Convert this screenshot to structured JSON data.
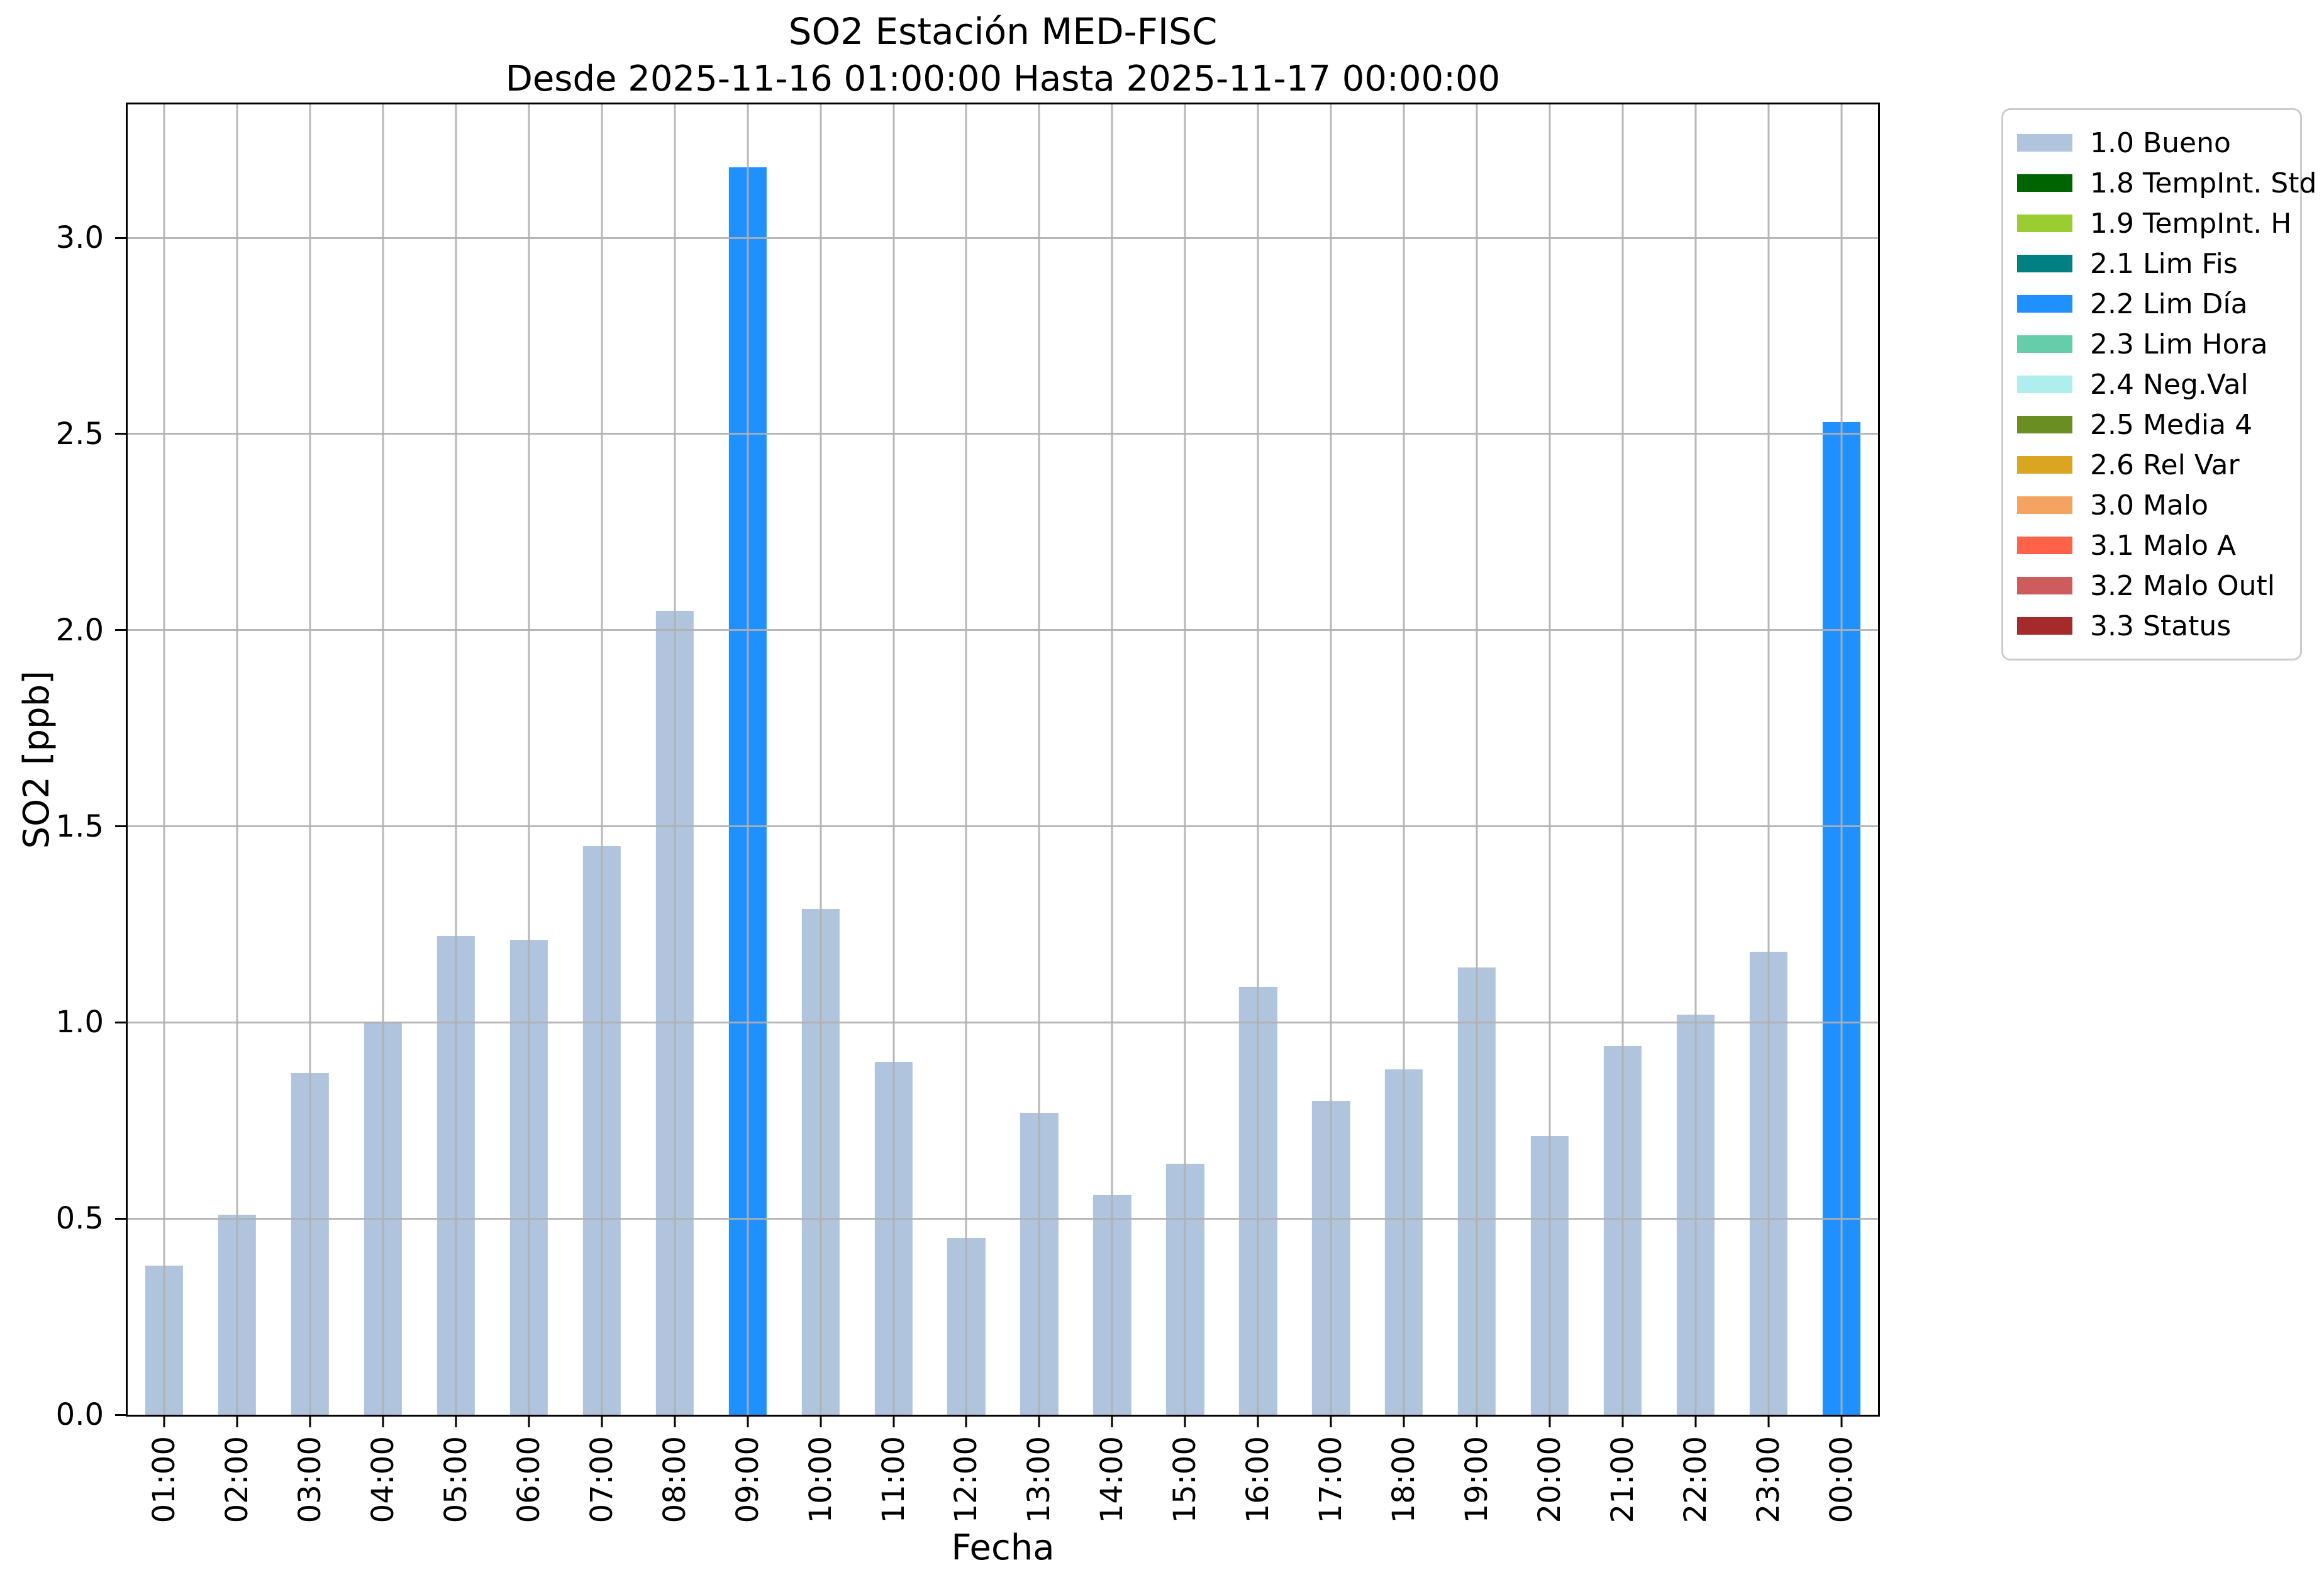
{
  "chart_data": {
    "type": "bar",
    "title": "SO2 Estación MED-FISC",
    "subtitle": "Desde 2025-11-16 01:00:00 Hasta 2025-11-17 00:00:00",
    "xlabel": "Fecha",
    "ylabel": "SO2 [ppb]",
    "ylim": [
      0,
      3.34
    ],
    "yticks": [
      "0.0",
      "0.5",
      "1.0",
      "1.5",
      "2.0",
      "2.5",
      "3.0"
    ],
    "grid": true,
    "x_tick_rotation": 90,
    "categories": [
      "01:00",
      "02:00",
      "03:00",
      "04:00",
      "05:00",
      "06:00",
      "07:00",
      "08:00",
      "09:00",
      "10:00",
      "11:00",
      "12:00",
      "13:00",
      "14:00",
      "15:00",
      "16:00",
      "17:00",
      "18:00",
      "19:00",
      "20:00",
      "21:00",
      "22:00",
      "23:00",
      "00:00"
    ],
    "values": [
      0.38,
      0.51,
      0.87,
      1.0,
      1.22,
      1.21,
      1.45,
      2.05,
      3.18,
      1.29,
      0.9,
      0.45,
      0.77,
      0.56,
      0.64,
      1.09,
      0.8,
      0.88,
      1.14,
      0.71,
      0.94,
      1.02,
      1.18,
      2.53
    ],
    "bar_states": [
      "1.0 Bueno",
      "1.0 Bueno",
      "1.0 Bueno",
      "1.0 Bueno",
      "1.0 Bueno",
      "1.0 Bueno",
      "1.0 Bueno",
      "1.0 Bueno",
      "2.2 Lim Día",
      "1.0 Bueno",
      "1.0 Bueno",
      "1.0 Bueno",
      "1.0 Bueno",
      "1.0 Bueno",
      "1.0 Bueno",
      "1.0 Bueno",
      "1.0 Bueno",
      "1.0 Bueno",
      "1.0 Bueno",
      "1.0 Bueno",
      "1.0 Bueno",
      "1.0 Bueno",
      "1.0 Bueno",
      "2.2 Lim Día"
    ],
    "state_colors": {
      "1.0 Bueno": "#b0c4de",
      "2.2 Lim Día": "#1e90ff"
    },
    "grid_color": "#b0b0b0",
    "legend": {
      "position": "outside-upper-right",
      "items": [
        {
          "label": "1.0 Bueno",
          "color": "#b0c4de"
        },
        {
          "label": "1.8 TempInt. Std",
          "color": "#006400"
        },
        {
          "label": "1.9 TempInt. H",
          "color": "#9acd32"
        },
        {
          "label": "2.1 Lim Fis",
          "color": "#008080"
        },
        {
          "label": "2.2 Lim Día",
          "color": "#1e90ff"
        },
        {
          "label": "2.3 Lim Hora",
          "color": "#66cdaa"
        },
        {
          "label": "2.4 Neg.Val",
          "color": "#afeeee"
        },
        {
          "label": "2.5 Media 4",
          "color": "#6b8e23"
        },
        {
          "label": "2.6 Rel Var",
          "color": "#daa520"
        },
        {
          "label": "3.0 Malo",
          "color": "#f4a460"
        },
        {
          "label": "3.1 Malo A",
          "color": "#ff6347"
        },
        {
          "label": "3.2 Malo Outl",
          "color": "#cd5c5c"
        },
        {
          "label": "3.3 Status",
          "color": "#a52a2a"
        }
      ]
    }
  }
}
